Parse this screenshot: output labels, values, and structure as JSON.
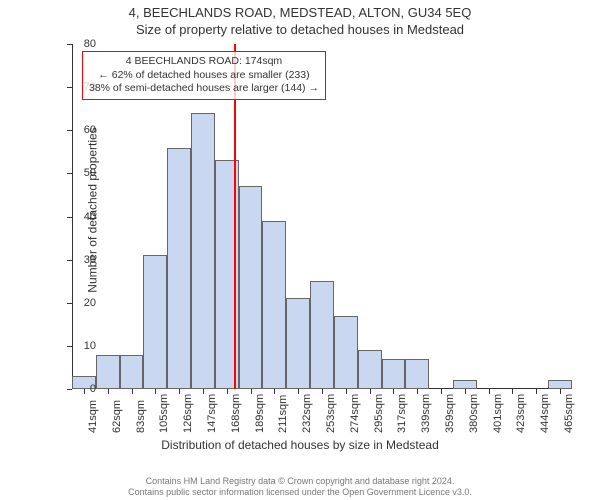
{
  "title": "4, BEECHLANDS ROAD, MEDSTEAD, ALTON, GU34 5EQ",
  "subtitle": "Size of property relative to detached houses in Medstead",
  "xlabel": "Distribution of detached houses by size in Medstead",
  "ylabel": "Number of detached properties",
  "chart": {
    "type": "histogram",
    "ylim": [
      0,
      80
    ],
    "yticks": [
      0,
      10,
      20,
      30,
      40,
      50,
      60,
      70,
      80
    ],
    "xticks": [
      "41sqm",
      "62sqm",
      "83sqm",
      "105sqm",
      "126sqm",
      "147sqm",
      "168sqm",
      "189sqm",
      "211sqm",
      "232sqm",
      "253sqm",
      "274sqm",
      "295sqm",
      "317sqm",
      "339sqm",
      "359sqm",
      "380sqm",
      "401sqm",
      "423sqm",
      "444sqm",
      "465sqm"
    ],
    "values": [
      3,
      8,
      8,
      31,
      56,
      64,
      53,
      47,
      39,
      21,
      25,
      17,
      9,
      7,
      7,
      0,
      2,
      0,
      0,
      0,
      2
    ],
    "bar_fill": "#c9d7f0",
    "bar_edge": "#666666",
    "background_color": "#ffffff",
    "axis_color": "#333333",
    "tick_fontsize": 11,
    "label_fontsize": 12,
    "title_fontsize": 13,
    "bar_width_ratio": 1.0,
    "marker": {
      "position_index": 6.3,
      "color": "#ff0000"
    }
  },
  "callout": {
    "border_color": "#ff0000",
    "lines": [
      "4 BEECHLANDS ROAD: 174sqm",
      "← 62% of detached houses are smaller (233)",
      "38% of semi-detached houses are larger (144) →"
    ]
  },
  "footer": {
    "line1": "Contains HM Land Registry data © Crown copyright and database right 2024.",
    "line2": "Contains public sector information licensed under the Open Government Licence v3.0."
  }
}
